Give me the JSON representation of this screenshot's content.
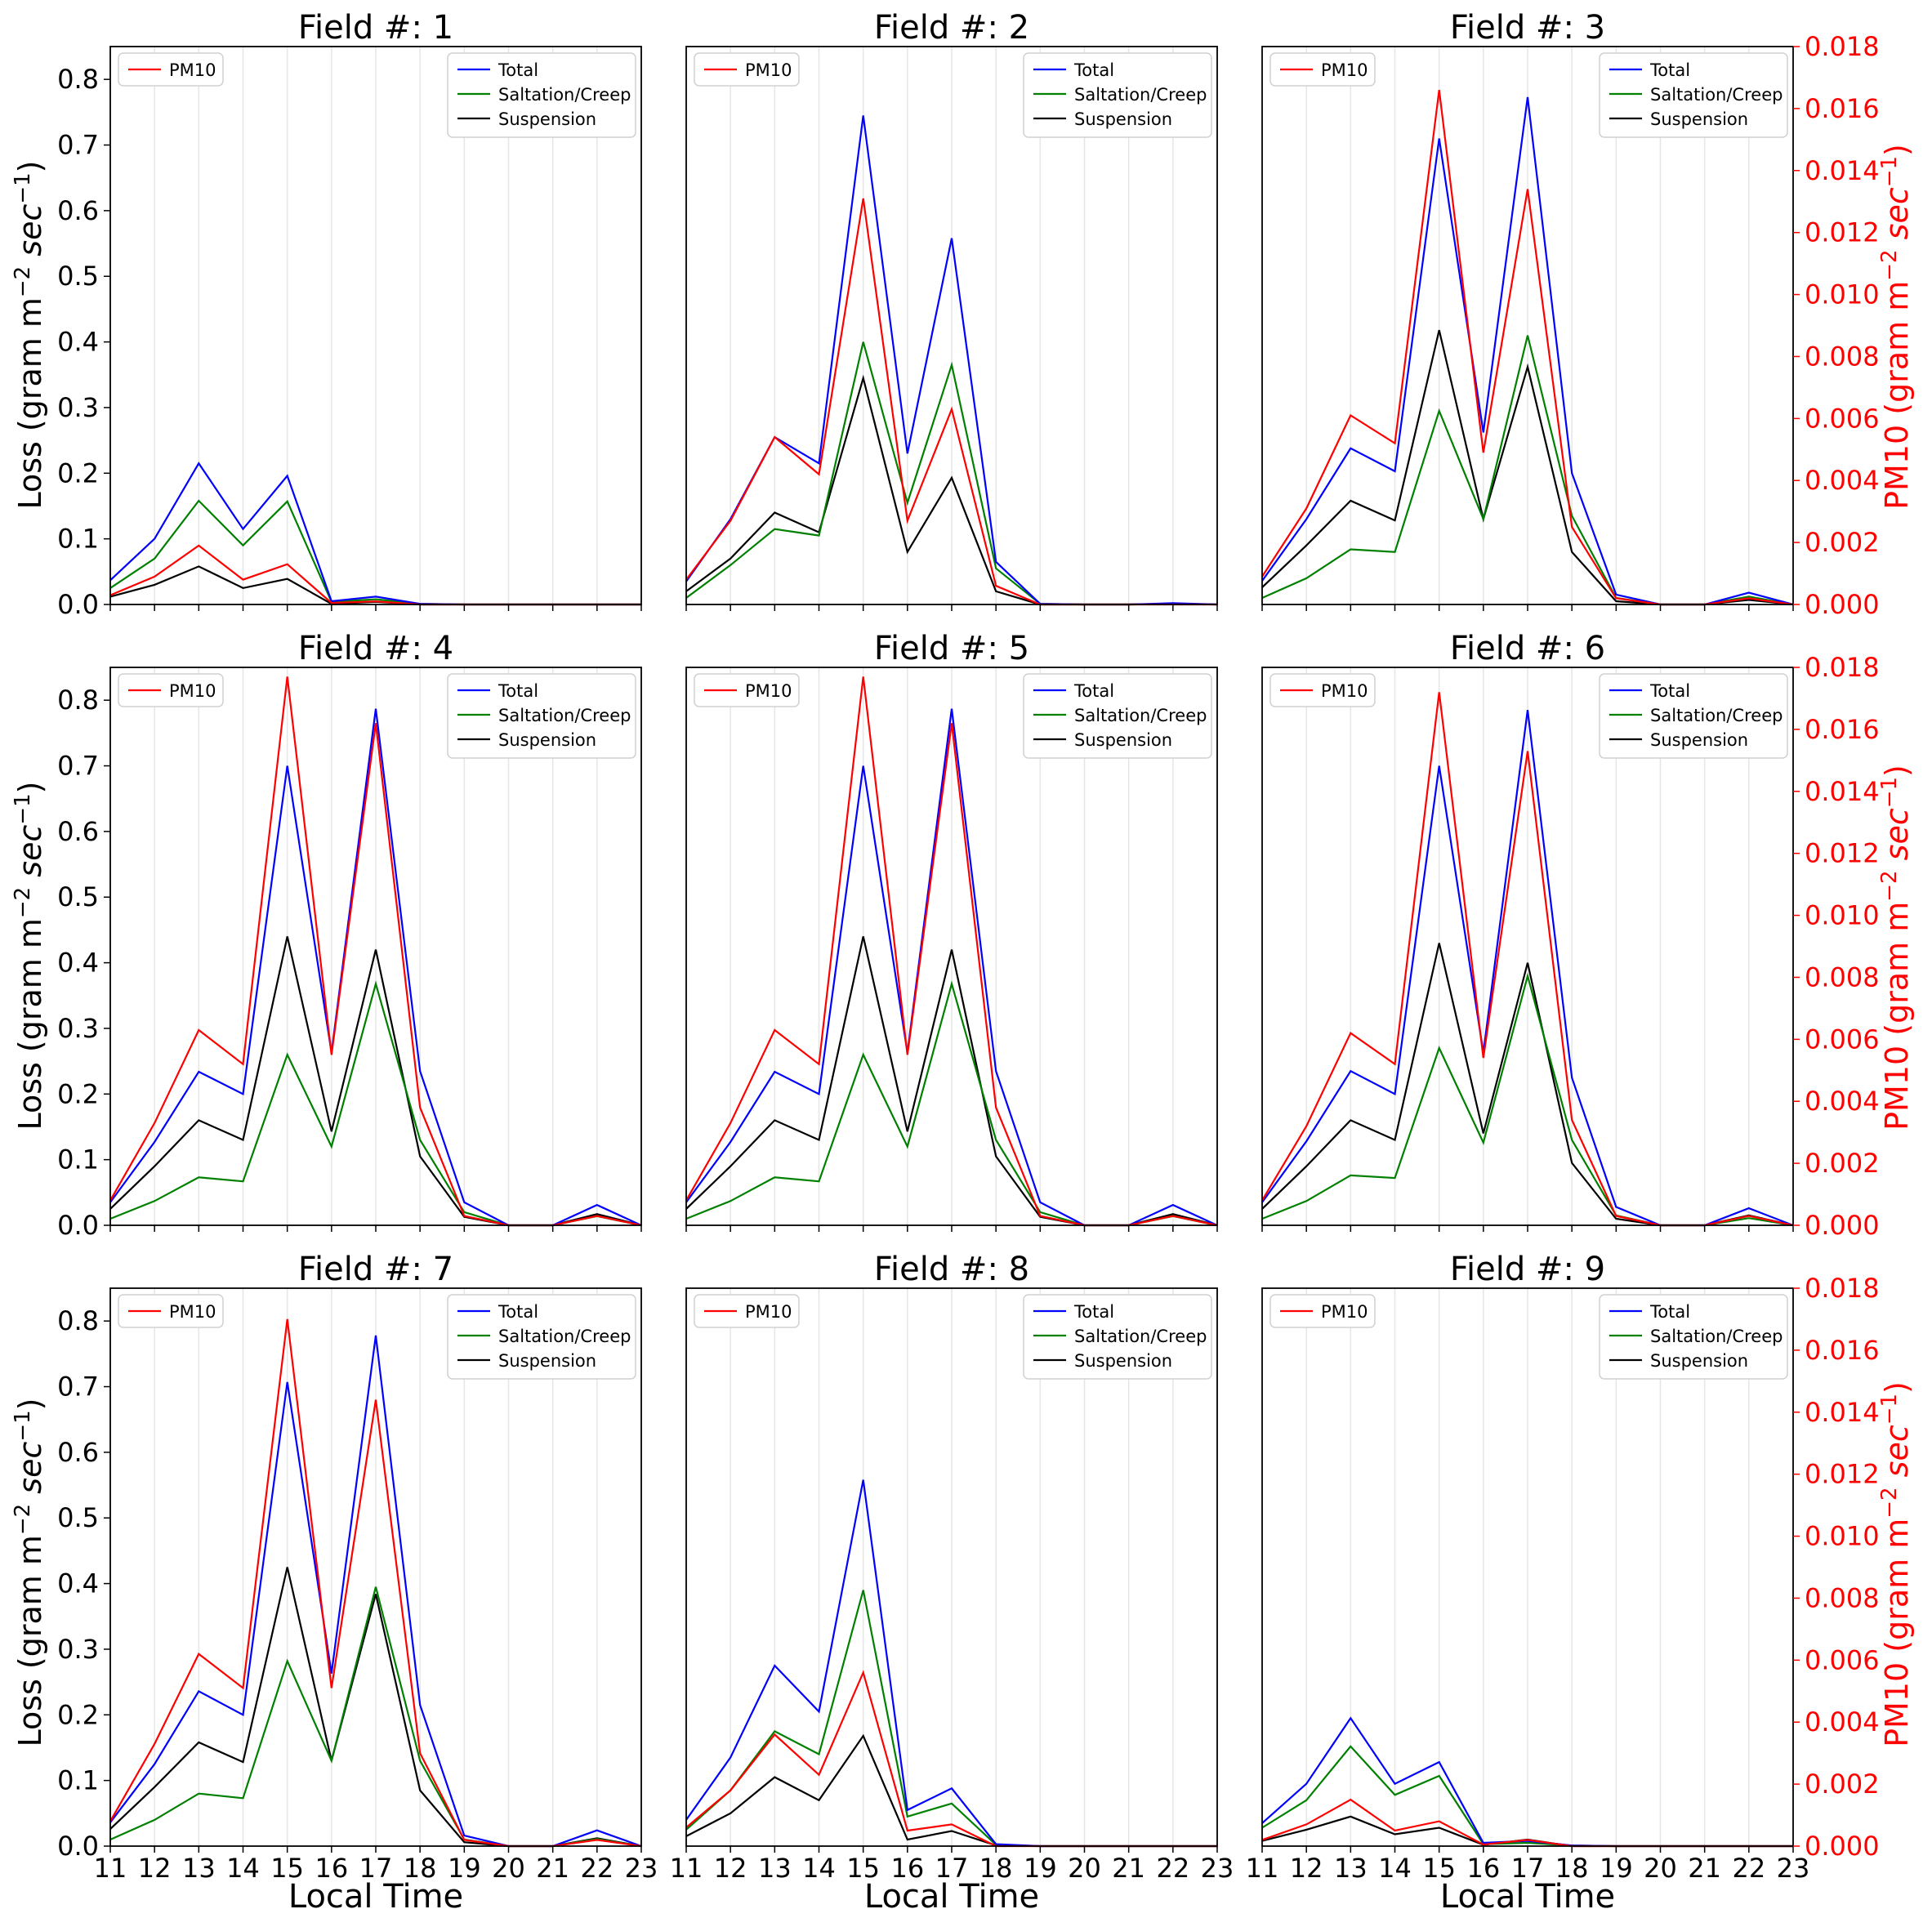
{
  "figure": {
    "left_axis_label": "Loss (gram m",
    "right_axis_label": "PM10 (gram m",
    "unit_exp1": "−2",
    "unit_mid": " sec",
    "unit_exp2": "−1",
    "unit_close": ")",
    "x_axis_label": "Local Time",
    "title_prefix": "Field #: "
  },
  "colors": {
    "total": "#0000ff",
    "saltation": "#008000",
    "suspension": "#000000",
    "pm10": "#ff0000",
    "right_axis": "#ff0000",
    "grid": "#e6e6e6"
  },
  "legend": {
    "pm10": "PM10",
    "total": "Total",
    "saltation": "Saltation/Creep",
    "suspension": "Suspension"
  },
  "chart_data": [
    {
      "type": "line",
      "field": "1",
      "title": "Field #: 1",
      "x": [
        11,
        12,
        13,
        14,
        15,
        16,
        17,
        18,
        19,
        20,
        21,
        22,
        23
      ],
      "xlabel": "Local Time",
      "ylabel": "Loss (gram m^-2 sec^-1)",
      "y2label": "PM10 (gram m^-2 sec^-1)",
      "ylim": [
        0,
        0.85
      ],
      "y2lim": [
        0,
        0.018
      ],
      "grid": "vertical",
      "series": [
        {
          "name": "Total",
          "axis": "left",
          "values": [
            0.037,
            0.1,
            0.215,
            0.115,
            0.196,
            0.005,
            0.012,
            0.001,
            0,
            0,
            0,
            0,
            0
          ]
        },
        {
          "name": "Saltation/Creep",
          "axis": "left",
          "values": [
            0.025,
            0.07,
            0.158,
            0.09,
            0.157,
            0.004,
            0.008,
            0.001,
            0,
            0,
            0,
            0,
            0
          ]
        },
        {
          "name": "Suspension",
          "axis": "left",
          "values": [
            0.012,
            0.03,
            0.058,
            0.025,
            0.039,
            0.001,
            0.004,
            0,
            0,
            0,
            0,
            0,
            0
          ]
        },
        {
          "name": "PM10",
          "axis": "right",
          "values": [
            0.0003,
            0.0009,
            0.0019,
            0.0008,
            0.0013,
            5e-05,
            0.0001,
            0,
            0,
            0,
            0,
            0,
            0
          ]
        }
      ]
    },
    {
      "type": "line",
      "field": "2",
      "title": "Field #: 2",
      "x": [
        11,
        12,
        13,
        14,
        15,
        16,
        17,
        18,
        19,
        20,
        21,
        22,
        23
      ],
      "xlabel": "Local Time",
      "ylabel": "Loss (gram m^-2 sec^-1)",
      "y2label": "PM10 (gram m^-2 sec^-1)",
      "ylim": [
        0,
        0.85
      ],
      "y2lim": [
        0,
        0.018
      ],
      "grid": "vertical",
      "series": [
        {
          "name": "Total",
          "axis": "left",
          "values": [
            0.035,
            0.13,
            0.255,
            0.215,
            0.745,
            0.23,
            0.558,
            0.065,
            0.001,
            0,
            0,
            0.002,
            0
          ]
        },
        {
          "name": "Saltation/Creep",
          "axis": "left",
          "values": [
            0.01,
            0.06,
            0.115,
            0.105,
            0.4,
            0.155,
            0.365,
            0.055,
            0.001,
            0,
            0,
            0.001,
            0
          ]
        },
        {
          "name": "Suspension",
          "axis": "left",
          "values": [
            0.02,
            0.07,
            0.14,
            0.11,
            0.345,
            0.08,
            0.193,
            0.02,
            0,
            0,
            0,
            0.001,
            0
          ]
        },
        {
          "name": "PM10",
          "axis": "right",
          "values": [
            0.0008,
            0.0027,
            0.0054,
            0.0042,
            0.0131,
            0.0027,
            0.0063,
            0.0006,
            0,
            0,
            0,
            0,
            0
          ]
        }
      ]
    },
    {
      "type": "line",
      "field": "3",
      "title": "Field #: 3",
      "x": [
        11,
        12,
        13,
        14,
        15,
        16,
        17,
        18,
        19,
        20,
        21,
        22,
        23
      ],
      "xlabel": "Local Time",
      "ylabel": "Loss (gram m^-2 sec^-1)",
      "y2label": "PM10 (gram m^-2 sec^-1)",
      "ylim": [
        0,
        0.85
      ],
      "y2lim": [
        0,
        0.018
      ],
      "grid": "vertical",
      "series": [
        {
          "name": "Total",
          "axis": "left",
          "values": [
            0.036,
            0.13,
            0.238,
            0.203,
            0.71,
            0.262,
            0.773,
            0.2,
            0.015,
            0,
            0,
            0.018,
            0
          ]
        },
        {
          "name": "Saltation/Creep",
          "axis": "left",
          "values": [
            0.01,
            0.04,
            0.084,
            0.08,
            0.295,
            0.13,
            0.41,
            0.135,
            0.01,
            0,
            0,
            0.012,
            0
          ]
        },
        {
          "name": "Suspension",
          "axis": "left",
          "values": [
            0.026,
            0.09,
            0.158,
            0.128,
            0.418,
            0.13,
            0.362,
            0.08,
            0.005,
            0,
            0,
            0.007,
            0
          ]
        },
        {
          "name": "PM10",
          "axis": "right",
          "values": [
            0.0009,
            0.0031,
            0.0061,
            0.0052,
            0.0166,
            0.0049,
            0.0134,
            0.0025,
            0.0002,
            0,
            0,
            0.0002,
            0
          ]
        }
      ]
    },
    {
      "type": "line",
      "field": "4",
      "title": "Field #: 4",
      "x": [
        11,
        12,
        13,
        14,
        15,
        16,
        17,
        18,
        19,
        20,
        21,
        22,
        23
      ],
      "xlabel": "Local Time",
      "ylabel": "Loss (gram m^-2 sec^-1)",
      "y2label": "PM10 (gram m^-2 sec^-1)",
      "ylim": [
        0,
        0.85
      ],
      "y2lim": [
        0,
        0.018
      ],
      "grid": "vertical",
      "series": [
        {
          "name": "Total",
          "axis": "left",
          "values": [
            0.035,
            0.127,
            0.234,
            0.2,
            0.7,
            0.263,
            0.787,
            0.235,
            0.035,
            0,
            0,
            0.031,
            0
          ]
        },
        {
          "name": "Saltation/Creep",
          "axis": "left",
          "values": [
            0.01,
            0.037,
            0.073,
            0.067,
            0.26,
            0.12,
            0.368,
            0.13,
            0.02,
            0,
            0,
            0.014,
            0
          ]
        },
        {
          "name": "Suspension",
          "axis": "left",
          "values": [
            0.025,
            0.09,
            0.16,
            0.13,
            0.44,
            0.143,
            0.42,
            0.105,
            0.013,
            0,
            0,
            0.017,
            0
          ]
        },
        {
          "name": "PM10",
          "axis": "right",
          "values": [
            0.0008,
            0.0033,
            0.0063,
            0.0052,
            0.0177,
            0.0055,
            0.0162,
            0.0038,
            0.0003,
            0,
            0,
            0.0003,
            0
          ]
        }
      ]
    },
    {
      "type": "line",
      "field": "5",
      "title": "Field #: 5",
      "x": [
        11,
        12,
        13,
        14,
        15,
        16,
        17,
        18,
        19,
        20,
        21,
        22,
        23
      ],
      "xlabel": "Local Time",
      "ylabel": "Loss (gram m^-2 sec^-1)",
      "y2label": "PM10 (gram m^-2 sec^-1)",
      "ylim": [
        0,
        0.85
      ],
      "y2lim": [
        0,
        0.018
      ],
      "grid": "vertical",
      "series": [
        {
          "name": "Total",
          "axis": "left",
          "values": [
            0.035,
            0.127,
            0.234,
            0.2,
            0.7,
            0.263,
            0.787,
            0.235,
            0.035,
            0,
            0,
            0.031,
            0
          ]
        },
        {
          "name": "Saltation/Creep",
          "axis": "left",
          "values": [
            0.01,
            0.037,
            0.073,
            0.067,
            0.26,
            0.12,
            0.368,
            0.13,
            0.02,
            0,
            0,
            0.014,
            0
          ]
        },
        {
          "name": "Suspension",
          "axis": "left",
          "values": [
            0.025,
            0.09,
            0.16,
            0.13,
            0.44,
            0.143,
            0.42,
            0.105,
            0.013,
            0,
            0,
            0.017,
            0
          ]
        },
        {
          "name": "PM10",
          "axis": "right",
          "values": [
            0.0008,
            0.0033,
            0.0063,
            0.0052,
            0.0177,
            0.0055,
            0.0162,
            0.0038,
            0.0003,
            0,
            0,
            0.0003,
            0
          ]
        }
      ]
    },
    {
      "type": "line",
      "field": "6",
      "title": "Field #: 6",
      "x": [
        11,
        12,
        13,
        14,
        15,
        16,
        17,
        18,
        19,
        20,
        21,
        22,
        23
      ],
      "xlabel": "Local Time",
      "ylabel": "Loss (gram m^-2 sec^-1)",
      "y2label": "PM10 (gram m^-2 sec^-1)",
      "ylim": [
        0,
        0.85
      ],
      "y2lim": [
        0,
        0.018
      ],
      "grid": "vertical",
      "series": [
        {
          "name": "Total",
          "axis": "left",
          "values": [
            0.035,
            0.128,
            0.235,
            0.2,
            0.7,
            0.263,
            0.785,
            0.225,
            0.028,
            0,
            0,
            0.026,
            0
          ]
        },
        {
          "name": "Saltation/Creep",
          "axis": "left",
          "values": [
            0.01,
            0.037,
            0.076,
            0.072,
            0.27,
            0.126,
            0.38,
            0.13,
            0.015,
            0,
            0,
            0.011,
            0
          ]
        },
        {
          "name": "Suspension",
          "axis": "left",
          "values": [
            0.025,
            0.09,
            0.16,
            0.13,
            0.43,
            0.14,
            0.4,
            0.095,
            0.01,
            0,
            0,
            0.015,
            0
          ]
        },
        {
          "name": "PM10",
          "axis": "right",
          "values": [
            0.0008,
            0.0032,
            0.0062,
            0.0052,
            0.0172,
            0.0054,
            0.0153,
            0.0034,
            0.0003,
            0,
            0,
            0.0003,
            0
          ]
        }
      ]
    },
    {
      "type": "line",
      "field": "7",
      "title": "Field #: 7",
      "x": [
        11,
        12,
        13,
        14,
        15,
        16,
        17,
        18,
        19,
        20,
        21,
        22,
        23
      ],
      "xlabel": "Local Time",
      "ylabel": "Loss (gram m^-2 sec^-1)",
      "y2label": "PM10 (gram m^-2 sec^-1)",
      "ylim": [
        0,
        0.85
      ],
      "y2lim": [
        0,
        0.018
      ],
      "grid": "vertical",
      "series": [
        {
          "name": "Total",
          "axis": "left",
          "values": [
            0.036,
            0.125,
            0.236,
            0.2,
            0.707,
            0.263,
            0.778,
            0.215,
            0.016,
            0,
            0,
            0.024,
            0
          ]
        },
        {
          "name": "Saltation/Creep",
          "axis": "left",
          "values": [
            0.01,
            0.04,
            0.08,
            0.073,
            0.282,
            0.13,
            0.395,
            0.13,
            0.01,
            0,
            0,
            0.011,
            0
          ]
        },
        {
          "name": "Suspension",
          "axis": "left",
          "values": [
            0.026,
            0.09,
            0.158,
            0.128,
            0.425,
            0.13,
            0.384,
            0.085,
            0.006,
            0,
            0,
            0.012,
            0
          ]
        },
        {
          "name": "PM10",
          "axis": "right",
          "values": [
            0.0008,
            0.0033,
            0.0062,
            0.0051,
            0.017,
            0.0051,
            0.0144,
            0.003,
            0.0002,
            0,
            0,
            0.0002,
            0
          ]
        }
      ]
    },
    {
      "type": "line",
      "field": "8",
      "title": "Field #: 8",
      "x": [
        11,
        12,
        13,
        14,
        15,
        16,
        17,
        18,
        19,
        20,
        21,
        22,
        23
      ],
      "xlabel": "Local Time",
      "ylabel": "Loss (gram m^-2 sec^-1)",
      "y2label": "PM10 (gram m^-2 sec^-1)",
      "ylim": [
        0,
        0.85
      ],
      "y2lim": [
        0,
        0.018
      ],
      "grid": "vertical",
      "series": [
        {
          "name": "Total",
          "axis": "left",
          "values": [
            0.04,
            0.135,
            0.275,
            0.205,
            0.558,
            0.055,
            0.088,
            0.003,
            0,
            0,
            0,
            0,
            0
          ]
        },
        {
          "name": "Saltation/Creep",
          "axis": "left",
          "values": [
            0.025,
            0.085,
            0.175,
            0.14,
            0.39,
            0.045,
            0.065,
            0.002,
            0,
            0,
            0,
            0,
            0
          ]
        },
        {
          "name": "Suspension",
          "axis": "left",
          "values": [
            0.015,
            0.05,
            0.105,
            0.07,
            0.168,
            0.01,
            0.023,
            0.001,
            0,
            0,
            0,
            0,
            0
          ]
        },
        {
          "name": "PM10",
          "axis": "right",
          "values": [
            0.0006,
            0.0018,
            0.0036,
            0.0023,
            0.0056,
            0.0005,
            0.0007,
            0,
            0,
            0,
            0,
            0,
            0
          ]
        }
      ]
    },
    {
      "type": "line",
      "field": "9",
      "title": "Field #: 9",
      "x": [
        11,
        12,
        13,
        14,
        15,
        16,
        17,
        18,
        19,
        20,
        21,
        22,
        23
      ],
      "xlabel": "Local Time",
      "ylabel": "Loss (gram m^-2 sec^-1)",
      "y2label": "PM10 (gram m^-2 sec^-1)",
      "ylim": [
        0,
        0.85
      ],
      "y2lim": [
        0,
        0.018
      ],
      "grid": "vertical",
      "series": [
        {
          "name": "Total",
          "axis": "left",
          "values": [
            0.035,
            0.095,
            0.195,
            0.095,
            0.128,
            0.005,
            0.008,
            0.001,
            0,
            0,
            0,
            0,
            0
          ]
        },
        {
          "name": "Saltation/Creep",
          "axis": "left",
          "values": [
            0.028,
            0.07,
            0.152,
            0.078,
            0.107,
            0.003,
            0.005,
            0.001,
            0,
            0,
            0,
            0,
            0
          ]
        },
        {
          "name": "Suspension",
          "axis": "left",
          "values": [
            0.008,
            0.025,
            0.045,
            0.018,
            0.028,
            0.002,
            0.01,
            0,
            0,
            0,
            0,
            0,
            0
          ]
        },
        {
          "name": "PM10",
          "axis": "right",
          "values": [
            0.0002,
            0.0007,
            0.0015,
            0.0005,
            0.0008,
            5e-05,
            0.0002,
            0,
            0,
            0,
            0,
            0,
            0
          ]
        }
      ]
    }
  ]
}
